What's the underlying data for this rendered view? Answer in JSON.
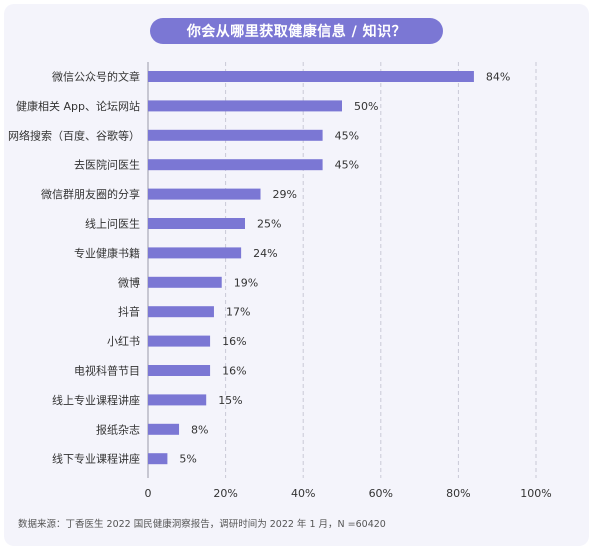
{
  "title": "你会从哪里获取健康信息 / 知识？",
  "footer": "数据来源：丁香医生 2022 国民健康洞察报告，调研时间为 2022 年 1 月，N =60420",
  "colors": {
    "bar": "#7b77d4",
    "grid": "#c9c9d6",
    "text": "#333333"
  },
  "chart_data": {
    "type": "bar",
    "orientation": "horizontal",
    "title": "你会从哪里获取健康信息 / 知识？",
    "categories": [
      "微信公众号的文章",
      "健康相关 App、论坛网站",
      "网络搜索（百度、谷歌等）",
      "去医院问医生",
      "微信群朋友圈的分享",
      "线上问医生",
      "专业健康书籍",
      "微博",
      "抖音",
      "小红书",
      "电视科普节目",
      "线上专业课程讲座",
      "报纸杂志",
      "线下专业课程讲座"
    ],
    "values": [
      84,
      50,
      45,
      45,
      29,
      25,
      24,
      19,
      17,
      16,
      16,
      15,
      8,
      5
    ],
    "value_labels": [
      "84%",
      "50%",
      "45%",
      "45%",
      "29%",
      "25%",
      "24%",
      "19%",
      "17%",
      "16%",
      "16%",
      "15%",
      "8%",
      "5%"
    ],
    "xlim": [
      0,
      100
    ],
    "xticks": [
      0,
      20,
      40,
      60,
      80,
      100
    ],
    "xtick_labels": [
      "0",
      "20%",
      "40%",
      "60%",
      "80%",
      "100%"
    ],
    "grid": true
  }
}
